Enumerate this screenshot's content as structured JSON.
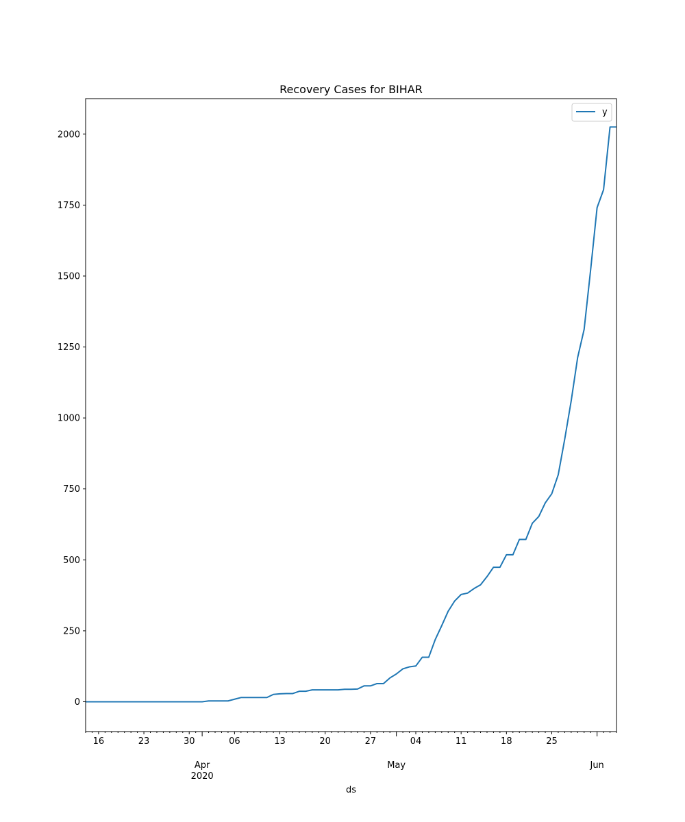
{
  "chart_data": {
    "type": "line",
    "title": "Recovery Cases for BIHAR",
    "xlabel": "ds",
    "ylabel": "",
    "x_range": [
      "2020-03-14",
      "2020-06-04"
    ],
    "ylim": [
      -105,
      2125
    ],
    "y_ticks": [
      0,
      250,
      500,
      750,
      1000,
      1250,
      1500,
      1750,
      2000
    ],
    "x_ticks": [
      {
        "date": "2020-03-16",
        "label": "16"
      },
      {
        "date": "2020-03-23",
        "label": "23"
      },
      {
        "date": "2020-03-30",
        "label": "30"
      },
      {
        "date": "2020-04-06",
        "label": "06"
      },
      {
        "date": "2020-04-13",
        "label": "13"
      },
      {
        "date": "2020-04-20",
        "label": "20"
      },
      {
        "date": "2020-04-27",
        "label": "27"
      },
      {
        "date": "2020-05-04",
        "label": "04"
      },
      {
        "date": "2020-05-11",
        "label": "11"
      },
      {
        "date": "2020-05-18",
        "label": "18"
      },
      {
        "date": "2020-05-25",
        "label": "25"
      }
    ],
    "x_month_ticks": [
      {
        "date": "2020-04-01",
        "label": "Apr",
        "year": "2020"
      },
      {
        "date": "2020-05-01",
        "label": "May",
        "year": ""
      },
      {
        "date": "2020-06-01",
        "label": "Jun",
        "year": ""
      }
    ],
    "legend": {
      "position": "top-right",
      "entries": [
        "y"
      ]
    },
    "grid": false,
    "color": "#1f77b4",
    "series": [
      {
        "name": "y",
        "x": [
          "2020-03-14",
          "2020-03-15",
          "2020-03-16",
          "2020-03-17",
          "2020-03-18",
          "2020-03-19",
          "2020-03-20",
          "2020-03-21",
          "2020-03-22",
          "2020-03-23",
          "2020-03-24",
          "2020-03-25",
          "2020-03-26",
          "2020-03-27",
          "2020-03-28",
          "2020-03-29",
          "2020-03-30",
          "2020-03-31",
          "2020-04-01",
          "2020-04-02",
          "2020-04-03",
          "2020-04-04",
          "2020-04-05",
          "2020-04-06",
          "2020-04-07",
          "2020-04-08",
          "2020-04-09",
          "2020-04-10",
          "2020-04-11",
          "2020-04-12",
          "2020-04-13",
          "2020-04-14",
          "2020-04-15",
          "2020-04-16",
          "2020-04-17",
          "2020-04-18",
          "2020-04-19",
          "2020-04-20",
          "2020-04-21",
          "2020-04-22",
          "2020-04-23",
          "2020-04-24",
          "2020-04-25",
          "2020-04-26",
          "2020-04-27",
          "2020-04-28",
          "2020-04-29",
          "2020-04-30",
          "2020-05-01",
          "2020-05-02",
          "2020-05-03",
          "2020-05-04",
          "2020-05-05",
          "2020-05-06",
          "2020-05-07",
          "2020-05-08",
          "2020-05-09",
          "2020-05-10",
          "2020-05-11",
          "2020-05-12",
          "2020-05-13",
          "2020-05-14",
          "2020-05-15",
          "2020-05-16",
          "2020-05-17",
          "2020-05-18",
          "2020-05-19",
          "2020-05-20",
          "2020-05-21",
          "2020-05-22",
          "2020-05-23",
          "2020-05-24",
          "2020-05-25",
          "2020-05-26",
          "2020-05-27",
          "2020-05-28",
          "2020-05-29",
          "2020-05-30",
          "2020-05-31",
          "2020-06-01",
          "2020-06-02",
          "2020-06-03",
          "2020-06-04"
        ],
        "values": [
          0,
          0,
          0,
          0,
          0,
          0,
          0,
          0,
          0,
          0,
          0,
          0,
          0,
          0,
          0,
          0,
          0,
          0,
          0,
          3,
          3,
          3,
          3,
          9,
          15,
          15,
          15,
          15,
          15,
          26,
          28,
          29,
          29,
          37,
          37,
          42,
          42,
          42,
          42,
          42,
          44,
          44,
          45,
          56,
          56,
          64,
          64,
          84,
          98,
          116,
          123,
          126,
          157,
          157,
          219,
          268,
          319,
          355,
          378,
          383,
          399,
          412,
          441,
          474,
          474,
          518,
          518,
          572,
          572,
          629,
          653,
          701,
          733,
          800,
          925,
          1060,
          1213,
          1312,
          1521,
          1741,
          1804,
          2025,
          2025
        ]
      }
    ]
  }
}
